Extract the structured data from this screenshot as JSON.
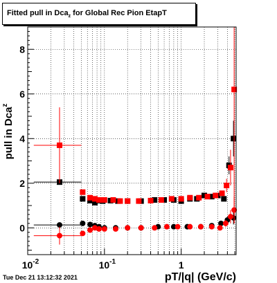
{
  "title": {
    "prefix": "Fitted pull in Dca",
    "subscript": "z",
    "suffix": " for Global Rec Pion EtapT"
  },
  "timestamp": "Tue Dec 21 13:12:32 2021",
  "chart_data": {
    "type": "scatter",
    "xlabel": "pT/|q| (GeV/c)",
    "ylabel_main": "pull in Dca",
    "ylabel_sub": "z",
    "x_scale": "log",
    "xlim": [
      0.01,
      5.2
    ],
    "ylim": [
      -1.2,
      9.0
    ],
    "x_tick_labels": [
      {
        "value": 0.01,
        "base": "10",
        "exp": "-2"
      },
      {
        "value": 0.1,
        "base": "10",
        "exp": "-1"
      },
      {
        "value": 1,
        "base": "1",
        "exp": ""
      }
    ],
    "y_ticks": [
      0,
      2,
      4,
      6,
      8
    ],
    "grid": true,
    "colors": {
      "black": "#000000",
      "red": "#ff0000"
    },
    "series": [
      {
        "color": "#000000",
        "points": [
          {
            "x": 0.026,
            "y": 2.05,
            "xerr": [
              0.014,
              0.024
            ],
            "yerr": 0.0
          },
          {
            "x": 0.052,
            "y": 1.3,
            "xerr": [
              0.004,
              0.004
            ],
            "yerr": 0.04
          },
          {
            "x": 0.065,
            "y": 1.22,
            "xerr": [
              0.004,
              0.004
            ],
            "yerr": 0.04
          },
          {
            "x": 0.075,
            "y": 1.13,
            "xerr": [
              0.004,
              0.004
            ],
            "yerr": 0.04
          },
          {
            "x": 0.085,
            "y": 1.22,
            "xerr": [
              0.004,
              0.004
            ],
            "yerr": 0.04
          },
          {
            "x": 0.095,
            "y": 1.2,
            "xerr": [
              0.004,
              0.004
            ],
            "yerr": 0.04
          },
          {
            "x": 0.12,
            "y": 1.22,
            "xerr": [
              0.005,
              0.005
            ],
            "yerr": 0.04
          },
          {
            "x": 0.15,
            "y": 1.2,
            "xerr": [
              0.006,
              0.006
            ],
            "yerr": 0.04
          },
          {
            "x": 0.2,
            "y": 1.2,
            "xerr": [
              0.008,
              0.008
            ],
            "yerr": 0.04
          },
          {
            "x": 0.3,
            "y": 1.2,
            "xerr": [
              0.01,
              0.01
            ],
            "yerr": 0.04
          },
          {
            "x": 0.45,
            "y": 1.25,
            "xerr": [
              0.01,
              0.01
            ],
            "yerr": 0.04
          },
          {
            "x": 0.6,
            "y": 1.25,
            "xerr": [
              0.02,
              0.02
            ],
            "yerr": 0.04
          },
          {
            "x": 0.8,
            "y": 1.25,
            "xerr": [
              0.03,
              0.03
            ],
            "yerr": 0.04
          },
          {
            "x": 1.0,
            "y": 1.2,
            "xerr": [
              0.03,
              0.03
            ],
            "yerr": 0.05
          },
          {
            "x": 1.3,
            "y": 1.3,
            "xerr": [
              0.04,
              0.04
            ],
            "yerr": 0.05
          },
          {
            "x": 1.6,
            "y": 1.3,
            "xerr": [
              0.05,
              0.05
            ],
            "yerr": 0.05
          },
          {
            "x": 2.0,
            "y": 1.45,
            "xerr": [
              0.06,
              0.06
            ],
            "yerr": 0.06
          },
          {
            "x": 2.5,
            "y": 1.4,
            "xerr": [
              0.07,
              0.07
            ],
            "yerr": 0.07
          },
          {
            "x": 3.0,
            "y": 1.45,
            "xerr": [
              0.08,
              0.08
            ],
            "yerr": 0.08
          },
          {
            "x": 3.6,
            "y": 1.3,
            "xerr": [
              0.1,
              0.1
            ],
            "yerr": 0.1
          },
          {
            "x": 4.2,
            "y": 2.8,
            "xerr": [
              0.15,
              0.15
            ],
            "yerr": 0.4
          },
          {
            "x": 4.8,
            "y": 4.0,
            "xerr": [
              0.3,
              0.3
            ],
            "yerr": 0.8
          },
          {
            "x": 0.026,
            "y": 0.13,
            "xerr": [
              0.014,
              0.024
            ],
            "yerr": 0.0
          },
          {
            "x": 0.052,
            "y": 0.2,
            "xerr": [
              0.004,
              0.004
            ],
            "yerr": 0.04
          },
          {
            "x": 0.065,
            "y": 0.15,
            "xerr": [
              0.004,
              0.004
            ],
            "yerr": 0.04
          },
          {
            "x": 0.075,
            "y": 0.1,
            "xerr": [
              0.004,
              0.004
            ],
            "yerr": 0.04
          },
          {
            "x": 0.085,
            "y": 0.05,
            "xerr": [
              0.004,
              0.004
            ],
            "yerr": 0.04
          },
          {
            "x": 0.1,
            "y": 0.0,
            "xerr": [
              0.004,
              0.004
            ],
            "yerr": 0.04
          },
          {
            "x": 0.14,
            "y": 0.0,
            "xerr": [
              0.006,
              0.006
            ],
            "yerr": 0.04
          },
          {
            "x": 0.2,
            "y": 0.0,
            "xerr": [
              0.008,
              0.008
            ],
            "yerr": 0.04
          },
          {
            "x": 0.3,
            "y": 0.0,
            "xerr": [
              0.01,
              0.01
            ],
            "yerr": 0.04
          },
          {
            "x": 0.5,
            "y": 0.05,
            "xerr": [
              0.02,
              0.02
            ],
            "yerr": 0.04
          },
          {
            "x": 0.8,
            "y": 0.05,
            "xerr": [
              0.03,
              0.03
            ],
            "yerr": 0.04
          },
          {
            "x": 1.2,
            "y": 0.05,
            "xerr": [
              0.04,
              0.04
            ],
            "yerr": 0.05
          },
          {
            "x": 1.8,
            "y": 0.05,
            "xerr": [
              0.05,
              0.05
            ],
            "yerr": 0.05
          },
          {
            "x": 2.5,
            "y": 0.1,
            "xerr": [
              0.07,
              0.07
            ],
            "yerr": 0.06
          },
          {
            "x": 3.3,
            "y": 0.2,
            "xerr": [
              0.09,
              0.09
            ],
            "yerr": 0.08
          },
          {
            "x": 4.0,
            "y": 0.35,
            "xerr": [
              0.15,
              0.15
            ],
            "yerr": 0.15
          },
          {
            "x": 4.8,
            "y": 0.45,
            "xerr": [
              0.3,
              0.3
            ],
            "yerr": 0.3
          }
        ]
      },
      {
        "color": "#ff0000",
        "points": [
          {
            "x": 0.026,
            "y": 3.7,
            "xerr": [
              0.014,
              0.024
            ],
            "yerr": 1.7
          },
          {
            "x": 0.052,
            "y": 1.6,
            "xerr": [
              0.004,
              0.004
            ],
            "yerr": 0.05
          },
          {
            "x": 0.065,
            "y": 1.35,
            "xerr": [
              0.004,
              0.004
            ],
            "yerr": 0.05
          },
          {
            "x": 0.075,
            "y": 1.3,
            "xerr": [
              0.004,
              0.004
            ],
            "yerr": 0.05
          },
          {
            "x": 0.085,
            "y": 1.25,
            "xerr": [
              0.004,
              0.004
            ],
            "yerr": 0.05
          },
          {
            "x": 0.1,
            "y": 1.25,
            "xerr": [
              0.004,
              0.004
            ],
            "yerr": 0.05
          },
          {
            "x": 0.13,
            "y": 1.25,
            "xerr": [
              0.005,
              0.005
            ],
            "yerr": 0.05
          },
          {
            "x": 0.16,
            "y": 1.2,
            "xerr": [
              0.006,
              0.006
            ],
            "yerr": 0.04
          },
          {
            "x": 0.2,
            "y": 1.2,
            "xerr": [
              0.008,
              0.008
            ],
            "yerr": 0.04
          },
          {
            "x": 0.28,
            "y": 1.2,
            "xerr": [
              0.01,
              0.01
            ],
            "yerr": 0.04
          },
          {
            "x": 0.4,
            "y": 1.22,
            "xerr": [
              0.01,
              0.01
            ],
            "yerr": 0.04
          },
          {
            "x": 0.55,
            "y": 1.25,
            "xerr": [
              0.02,
              0.02
            ],
            "yerr": 0.04
          },
          {
            "x": 0.75,
            "y": 1.3,
            "xerr": [
              0.02,
              0.02
            ],
            "yerr": 0.04
          },
          {
            "x": 1.0,
            "y": 1.3,
            "xerr": [
              0.03,
              0.03
            ],
            "yerr": 0.05
          },
          {
            "x": 1.3,
            "y": 1.35,
            "xerr": [
              0.04,
              0.04
            ],
            "yerr": 0.05
          },
          {
            "x": 1.7,
            "y": 1.35,
            "xerr": [
              0.05,
              0.05
            ],
            "yerr": 0.06
          },
          {
            "x": 2.2,
            "y": 1.4,
            "xerr": [
              0.06,
              0.06
            ],
            "yerr": 0.07
          },
          {
            "x": 2.8,
            "y": 1.45,
            "xerr": [
              0.08,
              0.08
            ],
            "yerr": 0.08
          },
          {
            "x": 3.4,
            "y": 1.55,
            "xerr": [
              0.1,
              0.1
            ],
            "yerr": 0.1
          },
          {
            "x": 3.9,
            "y": 1.9,
            "xerr": [
              0.12,
              0.12
            ],
            "yerr": 0.3
          },
          {
            "x": 4.4,
            "y": 2.7,
            "xerr": [
              0.15,
              0.15
            ],
            "yerr": 0.8
          },
          {
            "x": 4.9,
            "y": 6.2,
            "xerr": [
              0.3,
              0.3
            ],
            "yerr": 6.0
          },
          {
            "x": 0.026,
            "y": -0.35,
            "xerr": [
              0.014,
              0.024
            ],
            "yerr": 0.4
          },
          {
            "x": 0.052,
            "y": -0.25,
            "xerr": [
              0.004,
              0.004
            ],
            "yerr": 0.05
          },
          {
            "x": 0.065,
            "y": -0.1,
            "xerr": [
              0.004,
              0.004
            ],
            "yerr": 0.05
          },
          {
            "x": 0.075,
            "y": 0.0,
            "xerr": [
              0.004,
              0.004
            ],
            "yerr": 0.05
          },
          {
            "x": 0.085,
            "y": -0.05,
            "xerr": [
              0.004,
              0.004
            ],
            "yerr": 0.05
          },
          {
            "x": 0.1,
            "y": -0.05,
            "xerr": [
              0.004,
              0.004
            ],
            "yerr": 0.05
          },
          {
            "x": 0.14,
            "y": -0.05,
            "xerr": [
              0.006,
              0.006
            ],
            "yerr": 0.04
          },
          {
            "x": 0.2,
            "y": 0.0,
            "xerr": [
              0.008,
              0.008
            ],
            "yerr": 0.04
          },
          {
            "x": 0.3,
            "y": 0.0,
            "xerr": [
              0.01,
              0.01
            ],
            "yerr": 0.04
          },
          {
            "x": 0.45,
            "y": 0.0,
            "xerr": [
              0.01,
              0.01
            ],
            "yerr": 0.04
          },
          {
            "x": 0.65,
            "y": 0.05,
            "xerr": [
              0.02,
              0.02
            ],
            "yerr": 0.04
          },
          {
            "x": 0.9,
            "y": 0.05,
            "xerr": [
              0.03,
              0.03
            ],
            "yerr": 0.04
          },
          {
            "x": 1.3,
            "y": 0.05,
            "xerr": [
              0.04,
              0.04
            ],
            "yerr": 0.05
          },
          {
            "x": 1.8,
            "y": 0.05,
            "xerr": [
              0.05,
              0.05
            ],
            "yerr": 0.05
          },
          {
            "x": 2.5,
            "y": 0.05,
            "xerr": [
              0.07,
              0.07
            ],
            "yerr": 0.06
          },
          {
            "x": 3.2,
            "y": 0.0,
            "xerr": [
              0.09,
              0.09
            ],
            "yerr": 0.08
          },
          {
            "x": 3.8,
            "y": 0.2,
            "xerr": [
              0.12,
              0.12
            ],
            "yerr": 0.15
          },
          {
            "x": 4.4,
            "y": 0.5,
            "xerr": [
              0.15,
              0.15
            ],
            "yerr": 0.3
          },
          {
            "x": 4.9,
            "y": 0.8,
            "xerr": [
              0.3,
              0.3
            ],
            "yerr": 0.6
          }
        ]
      }
    ]
  }
}
